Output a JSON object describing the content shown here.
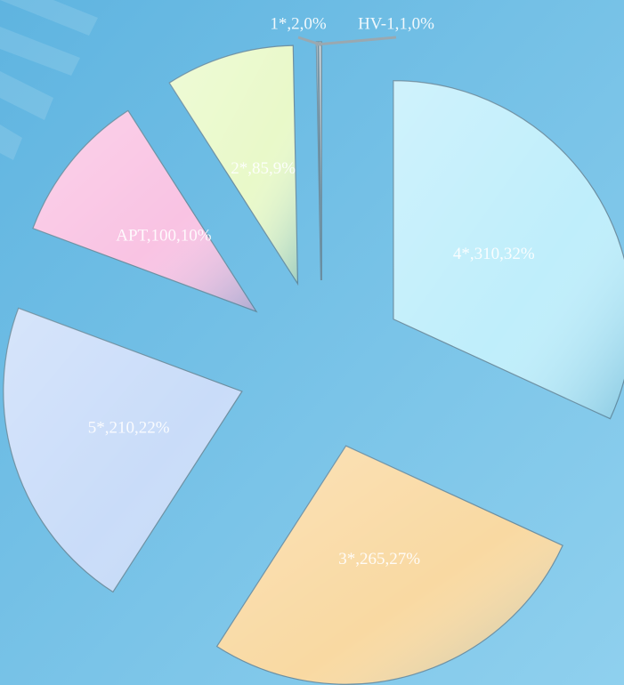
{
  "chart_data": {
    "type": "pie",
    "values": [
      310,
      265,
      210,
      100,
      85,
      1,
      2
    ],
    "value_labels": [
      "4*,310,32%",
      "3*,265,27%",
      "5*,210,22%",
      "APT,100,10%",
      "2*,85,9%",
      "HV-1,1,0%",
      "1*,2,0%"
    ],
    "colors": [
      "#bfeefb",
      "#f9d9a2",
      "#c9dcf9",
      "#f9c3e3",
      "#e9f9c9",
      "#b8c4cc",
      "#b8c4cc"
    ]
  }
}
